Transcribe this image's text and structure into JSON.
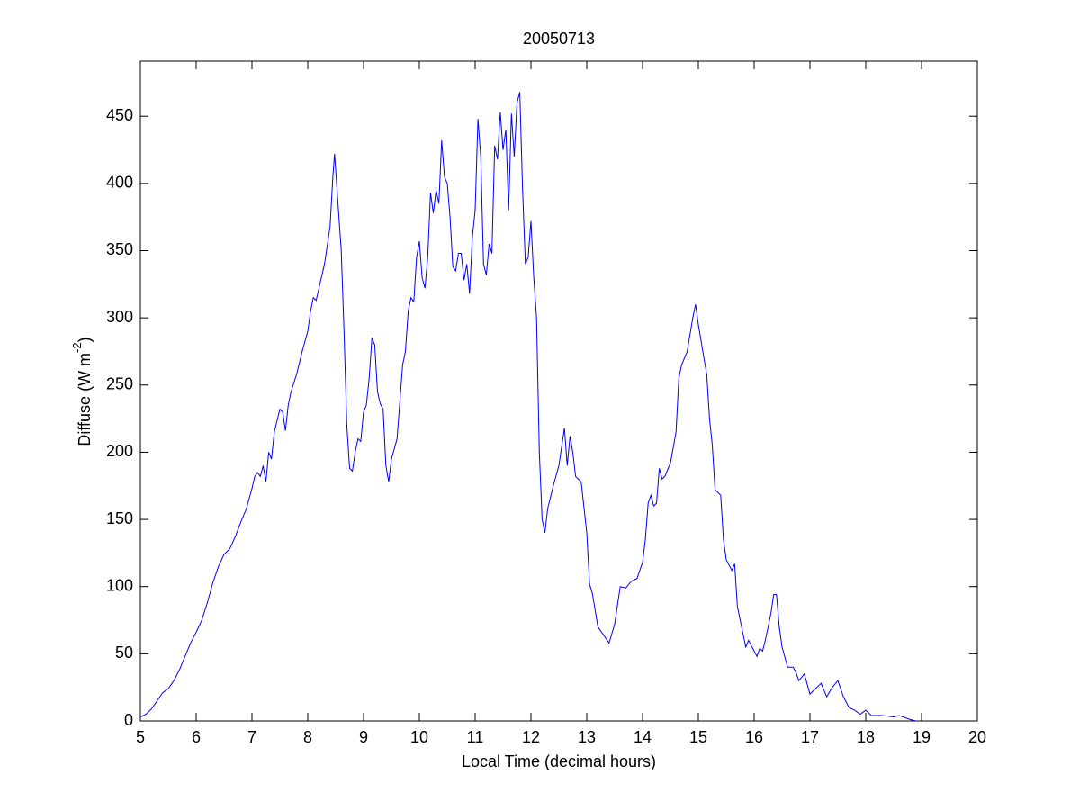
{
  "chart_data": {
    "type": "line",
    "title": "20050713",
    "xlabel": "Local Time (decimal hours)",
    "ylabel": [
      "Diffuse (W m",
      "-2",
      ")"
    ],
    "xlim": [
      5,
      20
    ],
    "xticks": [
      5,
      6,
      7,
      8,
      9,
      10,
      11,
      12,
      13,
      14,
      15,
      16,
      17,
      18,
      19,
      20
    ],
    "ylim": [
      0,
      491
    ],
    "yticks": [
      0,
      50,
      100,
      150,
      200,
      250,
      300,
      350,
      400,
      450
    ],
    "grid": false,
    "series": [
      {
        "color": "#0000ff",
        "x": [
          5.0,
          5.1,
          5.2,
          5.3,
          5.4,
          5.5,
          5.6,
          5.7,
          5.8,
          5.9,
          6.0,
          6.1,
          6.2,
          6.3,
          6.4,
          6.5,
          6.6,
          6.7,
          6.8,
          6.9,
          7.0,
          7.05,
          7.1,
          7.15,
          7.2,
          7.25,
          7.3,
          7.35,
          7.4,
          7.5,
          7.55,
          7.6,
          7.65,
          7.7,
          7.8,
          7.9,
          8.0,
          8.05,
          8.1,
          8.15,
          8.2,
          8.3,
          8.4,
          8.45,
          8.48,
          8.5,
          8.55,
          8.6,
          8.65,
          8.7,
          8.75,
          8.8,
          8.85,
          8.9,
          8.95,
          9.0,
          9.05,
          9.1,
          9.15,
          9.2,
          9.25,
          9.3,
          9.35,
          9.4,
          9.45,
          9.5,
          9.6,
          9.7,
          9.75,
          9.8,
          9.85,
          9.9,
          9.95,
          10.0,
          10.05,
          10.1,
          10.15,
          10.2,
          10.25,
          10.3,
          10.35,
          10.4,
          10.45,
          10.5,
          10.55,
          10.6,
          10.65,
          10.7,
          10.75,
          10.8,
          10.85,
          10.9,
          10.95,
          11.0,
          11.05,
          11.1,
          11.15,
          11.2,
          11.25,
          11.3,
          11.35,
          11.4,
          11.45,
          11.5,
          11.55,
          11.6,
          11.65,
          11.7,
          11.75,
          11.8,
          11.85,
          11.9,
          11.95,
          12.0,
          12.05,
          12.1,
          12.15,
          12.2,
          12.25,
          12.3,
          12.4,
          12.5,
          12.6,
          12.65,
          12.7,
          12.75,
          12.8,
          12.9,
          13.0,
          13.05,
          13.1,
          13.2,
          13.3,
          13.4,
          13.5,
          13.6,
          13.7,
          13.8,
          13.9,
          14.0,
          14.05,
          14.1,
          14.15,
          14.2,
          14.25,
          14.3,
          14.35,
          14.4,
          14.5,
          14.6,
          14.65,
          14.7,
          14.8,
          14.9,
          14.95,
          15.0,
          15.1,
          15.15,
          15.2,
          15.25,
          15.3,
          15.4,
          15.45,
          15.5,
          15.6,
          15.65,
          15.7,
          15.8,
          15.85,
          15.9,
          16.0,
          16.05,
          16.1,
          16.15,
          16.2,
          16.3,
          16.35,
          16.4,
          16.45,
          16.5,
          16.6,
          16.7,
          16.75,
          16.8,
          16.9,
          17.0,
          17.1,
          17.2,
          17.3,
          17.4,
          17.5,
          17.6,
          17.7,
          17.8,
          17.9,
          18.0,
          18.1,
          18.3,
          18.5,
          18.6,
          18.8,
          18.9
        ],
        "values": [
          3,
          5,
          9,
          15,
          21,
          24,
          30,
          38,
          48,
          58,
          66,
          75,
          88,
          103,
          115,
          124,
          128,
          137,
          148,
          158,
          173,
          182,
          185,
          182,
          190,
          178,
          200,
          195,
          215,
          232,
          230,
          216,
          235,
          245,
          258,
          275,
          290,
          305,
          315,
          313,
          322,
          340,
          368,
          405,
          422,
          410,
          380,
          350,
          290,
          220,
          188,
          186,
          200,
          210,
          208,
          230,
          235,
          255,
          285,
          280,
          245,
          236,
          232,
          190,
          178,
          195,
          210,
          265,
          275,
          305,
          315,
          312,
          345,
          357,
          330,
          322,
          345,
          393,
          378,
          395,
          385,
          432,
          405,
          400,
          375,
          338,
          335,
          348,
          348,
          328,
          340,
          318,
          360,
          380,
          448,
          420,
          340,
          332,
          355,
          348,
          428,
          418,
          453,
          425,
          440,
          380,
          452,
          420,
          460,
          468,
          395,
          340,
          345,
          372,
          330,
          300,
          200,
          150,
          140,
          158,
          175,
          190,
          218,
          190,
          212,
          200,
          182,
          178,
          140,
          102,
          95,
          70,
          64,
          58,
          72,
          100,
          99,
          104,
          106,
          118,
          135,
          162,
          168,
          160,
          162,
          188,
          180,
          182,
          192,
          215,
          255,
          265,
          275,
          300,
          310,
          295,
          270,
          258,
          225,
          205,
          172,
          168,
          135,
          120,
          112,
          117,
          85,
          65,
          55,
          60,
          52,
          48,
          54,
          52,
          60,
          80,
          94,
          94,
          70,
          55,
          40,
          40,
          36,
          30,
          35,
          20,
          24,
          28,
          18,
          25,
          30,
          18,
          10,
          8,
          5,
          8,
          4,
          4,
          3,
          4,
          1,
          0
        ]
      }
    ]
  }
}
